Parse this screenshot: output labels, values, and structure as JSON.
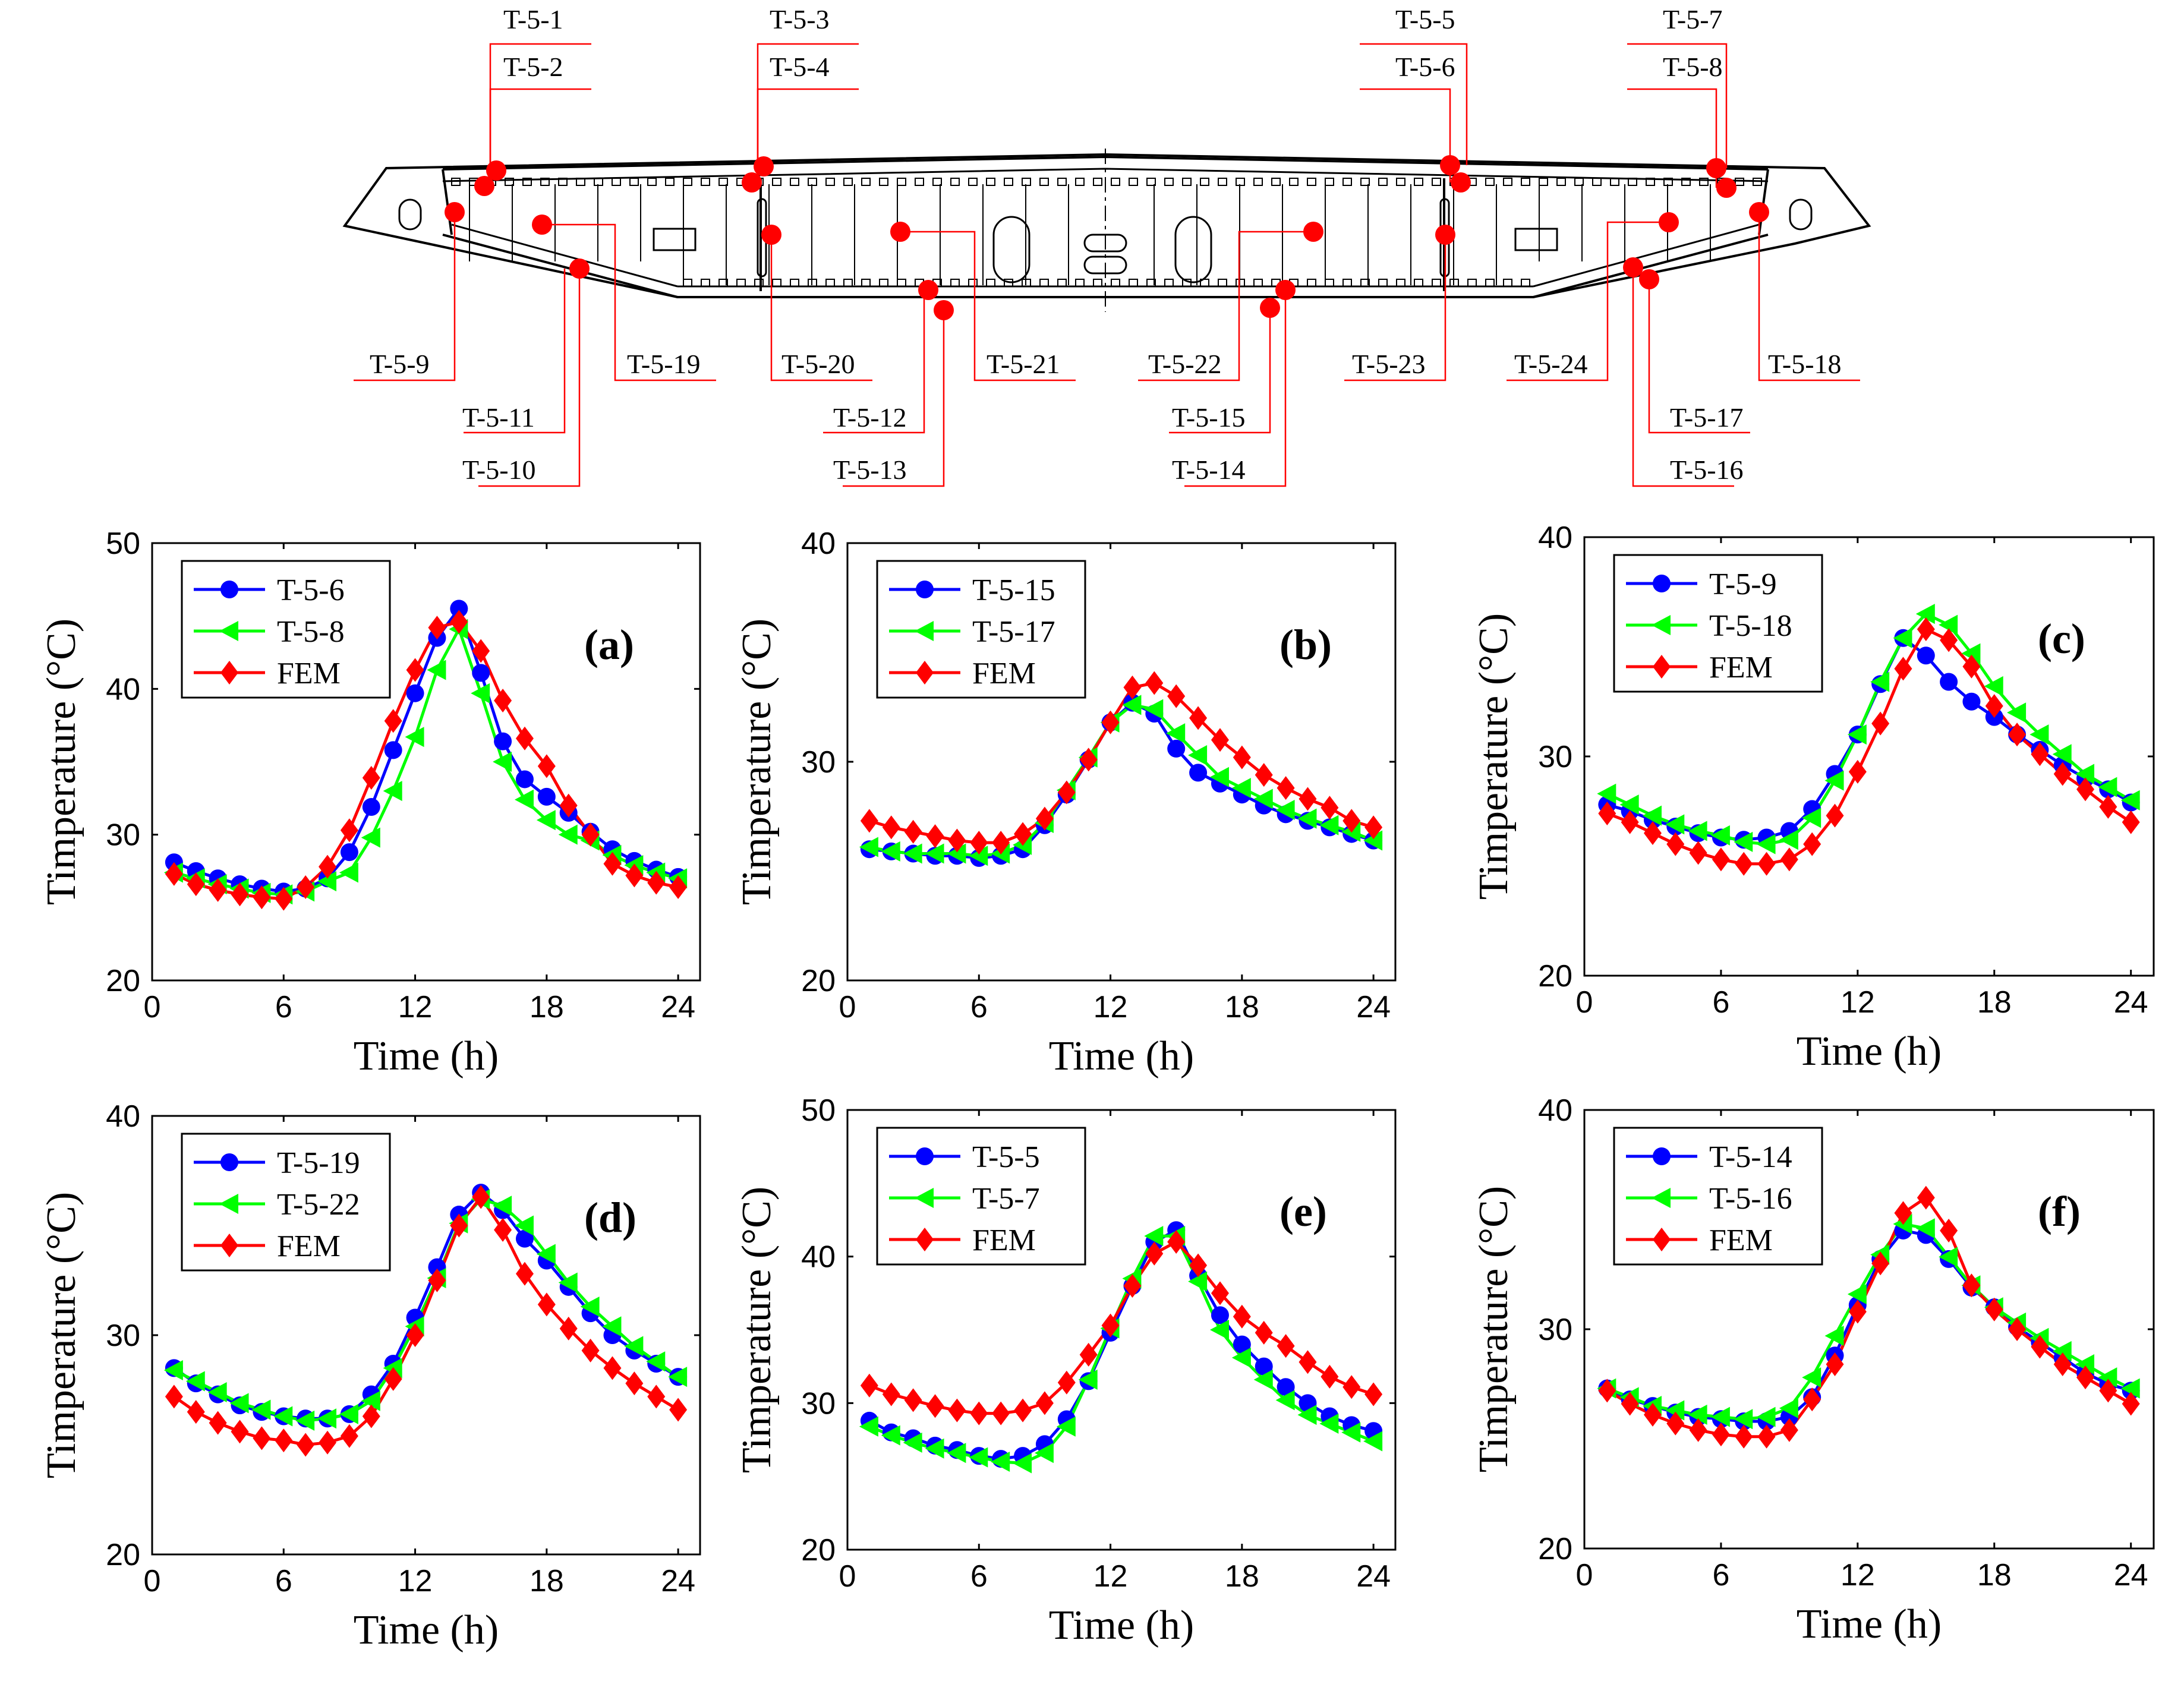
{
  "colors": {
    "series1": "#0000ff",
    "series2": "#00ff00",
    "fem": "#ff0000",
    "sensor": "#ff0000",
    "leader": "#ff0000"
  },
  "diagram": {
    "title": "",
    "sensor_labels": [
      "T-5-1",
      "T-5-2",
      "T-5-3",
      "T-5-4",
      "T-5-5",
      "T-5-6",
      "T-5-7",
      "T-5-8",
      "T-5-9",
      "T-5-10",
      "T-5-11",
      "T-5-12",
      "T-5-13",
      "T-5-14",
      "T-5-15",
      "T-5-16",
      "T-5-17",
      "T-5-18",
      "T-5-19",
      "T-5-20",
      "T-5-21",
      "T-5-22",
      "T-5-23",
      "T-5-24"
    ]
  },
  "chart_data": [
    {
      "type": "line",
      "panel": "(a)",
      "xlabel": "Time (h)",
      "ylabel": "Timperature (°C)",
      "xlim": [
        0,
        25
      ],
      "ylim": [
        20,
        50
      ],
      "xticks": [
        0,
        6,
        12,
        18,
        24
      ],
      "yticks": [
        20,
        30,
        40,
        50
      ],
      "x": [
        1,
        2,
        3,
        4,
        5,
        6,
        7,
        8,
        9,
        10,
        11,
        12,
        13,
        14,
        15,
        16,
        17,
        18,
        19,
        20,
        21,
        22,
        23,
        24
      ],
      "series": [
        {
          "name": "T-5-6",
          "marker": "circle",
          "values": [
            28.1,
            27.5,
            27.0,
            26.6,
            26.3,
            26.1,
            26.3,
            27.0,
            28.8,
            31.9,
            35.8,
            39.7,
            43.5,
            45.5,
            41.1,
            36.4,
            33.8,
            32.6,
            31.5,
            30.2,
            29.0,
            28.2,
            27.6,
            27.1
          ]
        },
        {
          "name": "T-5-8",
          "marker": "triangle-left",
          "values": [
            27.4,
            27.0,
            26.6,
            26.3,
            26.0,
            25.9,
            26.1,
            26.8,
            27.4,
            29.8,
            33.0,
            36.7,
            41.3,
            44.1,
            39.7,
            35.0,
            32.4,
            31.0,
            30.0,
            29.6,
            28.6,
            27.9,
            27.4,
            27.0
          ]
        },
        {
          "name": "FEM",
          "marker": "diamond",
          "values": [
            27.3,
            26.6,
            26.2,
            25.9,
            25.7,
            25.6,
            26.4,
            27.8,
            30.3,
            33.9,
            37.8,
            41.3,
            44.2,
            44.6,
            42.6,
            39.2,
            36.6,
            34.7,
            32.0,
            30.0,
            28.0,
            27.2,
            26.7,
            26.4
          ]
        }
      ]
    },
    {
      "type": "line",
      "panel": "(b)",
      "xlabel": "Time (h)",
      "ylabel": "Timperature (°C)",
      "xlim": [
        0,
        25
      ],
      "ylim": [
        20,
        40
      ],
      "xticks": [
        0,
        6,
        12,
        18,
        24
      ],
      "yticks": [
        20,
        30,
        40
      ],
      "x": [
        1,
        2,
        3,
        4,
        5,
        6,
        7,
        8,
        9,
        10,
        11,
        12,
        13,
        14,
        15,
        16,
        17,
        18,
        19,
        20,
        21,
        22,
        23,
        24
      ],
      "series": [
        {
          "name": "T-5-15",
          "marker": "circle",
          "values": [
            26.0,
            25.9,
            25.8,
            25.7,
            25.7,
            25.6,
            25.7,
            26.0,
            27.1,
            28.5,
            30.1,
            31.8,
            32.7,
            32.2,
            30.6,
            29.5,
            29.0,
            28.5,
            28.0,
            27.6,
            27.3,
            27.0,
            26.7,
            26.4
          ]
        },
        {
          "name": "T-5-17",
          "marker": "triangle-left",
          "values": [
            26.1,
            25.9,
            25.8,
            25.8,
            25.8,
            25.7,
            25.8,
            26.2,
            27.2,
            28.7,
            30.2,
            31.8,
            32.6,
            32.4,
            31.3,
            30.3,
            29.3,
            28.8,
            28.3,
            27.8,
            27.4,
            27.1,
            26.8,
            26.4
          ]
        },
        {
          "name": "FEM",
          "marker": "diamond",
          "values": [
            27.3,
            27.0,
            26.8,
            26.6,
            26.4,
            26.3,
            26.3,
            26.7,
            27.4,
            28.6,
            30.1,
            31.8,
            33.4,
            33.6,
            33.0,
            32.0,
            31.0,
            30.2,
            29.4,
            28.8,
            28.3,
            27.9,
            27.3,
            27.0
          ]
        }
      ]
    },
    {
      "type": "line",
      "panel": "(c)",
      "xlabel": "Time (h)",
      "ylabel": "Timperature (°C)",
      "xlim": [
        0,
        25
      ],
      "ylim": [
        20,
        40
      ],
      "xticks": [
        0,
        6,
        12,
        18,
        24
      ],
      "yticks": [
        20,
        30,
        40
      ],
      "x": [
        1,
        2,
        3,
        4,
        5,
        6,
        7,
        8,
        9,
        10,
        11,
        12,
        13,
        14,
        15,
        16,
        17,
        18,
        19,
        20,
        21,
        22,
        23,
        24
      ],
      "series": [
        {
          "name": "T-5-9",
          "marker": "circle",
          "values": [
            27.8,
            27.5,
            27.1,
            26.8,
            26.5,
            26.3,
            26.2,
            26.3,
            26.6,
            27.6,
            29.2,
            31.0,
            33.3,
            35.4,
            34.6,
            33.4,
            32.5,
            31.8,
            31.0,
            30.3,
            29.6,
            29.0,
            28.5,
            27.9
          ]
        },
        {
          "name": "T-5-18",
          "marker": "triangle-left",
          "values": [
            28.3,
            27.8,
            27.3,
            26.9,
            26.6,
            26.4,
            26.1,
            26.0,
            26.2,
            27.2,
            28.9,
            31.0,
            33.4,
            35.4,
            36.5,
            36.0,
            34.7,
            33.2,
            32.0,
            31.0,
            30.1,
            29.2,
            28.6,
            28.0
          ]
        },
        {
          "name": "FEM",
          "marker": "diamond",
          "values": [
            27.4,
            27.0,
            26.5,
            26.0,
            25.6,
            25.3,
            25.1,
            25.1,
            25.3,
            26.0,
            27.3,
            29.3,
            31.5,
            34.0,
            35.8,
            35.3,
            34.1,
            32.3,
            31.0,
            30.1,
            29.2,
            28.5,
            27.7,
            27.0
          ]
        }
      ]
    },
    {
      "type": "line",
      "panel": "(d)",
      "xlabel": "Time (h)",
      "ylabel": "Timperature (°C)",
      "xlim": [
        0,
        25
      ],
      "ylim": [
        20,
        40
      ],
      "xticks": [
        0,
        6,
        12,
        18,
        24
      ],
      "yticks": [
        20,
        30,
        40
      ],
      "x": [
        1,
        2,
        3,
        4,
        5,
        6,
        7,
        8,
        9,
        10,
        11,
        12,
        13,
        14,
        15,
        16,
        17,
        18,
        19,
        20,
        21,
        22,
        23,
        24
      ],
      "series": [
        {
          "name": "T-5-19",
          "marker": "circle",
          "values": [
            28.5,
            27.8,
            27.3,
            26.8,
            26.5,
            26.3,
            26.2,
            26.2,
            26.4,
            27.3,
            28.7,
            30.8,
            33.1,
            35.5,
            36.5,
            35.7,
            34.4,
            33.4,
            32.2,
            31.0,
            30.0,
            29.3,
            28.7,
            28.1
          ]
        },
        {
          "name": "T-5-22",
          "marker": "triangle-left",
          "values": [
            28.4,
            27.9,
            27.4,
            26.9,
            26.6,
            26.3,
            26.1,
            26.2,
            26.4,
            27.0,
            28.5,
            30.4,
            32.6,
            35.1,
            36.2,
            35.9,
            35.0,
            33.7,
            32.4,
            31.3,
            30.4,
            29.5,
            28.8,
            28.1
          ]
        },
        {
          "name": "FEM",
          "marker": "diamond",
          "values": [
            27.2,
            26.5,
            26.0,
            25.6,
            25.3,
            25.2,
            25.0,
            25.1,
            25.4,
            26.3,
            28.0,
            30.0,
            32.5,
            35.0,
            36.3,
            34.8,
            32.8,
            31.4,
            30.3,
            29.3,
            28.5,
            27.8,
            27.2,
            26.6
          ]
        }
      ]
    },
    {
      "type": "line",
      "panel": "(e)",
      "xlabel": "Time (h)",
      "ylabel": "Timperature (°C)",
      "xlim": [
        0,
        25
      ],
      "ylim": [
        20,
        50
      ],
      "xticks": [
        0,
        6,
        12,
        18,
        24
      ],
      "yticks": [
        20,
        30,
        40,
        50
      ],
      "x": [
        1,
        2,
        3,
        4,
        5,
        6,
        7,
        8,
        9,
        10,
        11,
        12,
        13,
        14,
        15,
        16,
        17,
        18,
        19,
        20,
        21,
        22,
        23,
        24
      ],
      "series": [
        {
          "name": "T-5-5",
          "marker": "circle",
          "values": [
            28.8,
            28.0,
            27.6,
            27.1,
            26.8,
            26.4,
            26.2,
            26.4,
            27.2,
            28.9,
            31.5,
            34.8,
            38.0,
            41.0,
            41.8,
            38.7,
            36.0,
            34.0,
            32.5,
            31.1,
            30.0,
            29.1,
            28.5,
            28.1
          ]
        },
        {
          "name": "T-5-7",
          "marker": "triangle-left",
          "values": [
            28.4,
            27.8,
            27.3,
            26.9,
            26.6,
            26.3,
            26.0,
            25.9,
            26.6,
            28.4,
            31.6,
            35.1,
            38.5,
            41.4,
            41.4,
            38.3,
            35.0,
            33.1,
            31.6,
            30.2,
            29.2,
            28.6,
            28.0,
            27.4
          ]
        },
        {
          "name": "FEM",
          "marker": "diamond",
          "values": [
            31.2,
            30.6,
            30.2,
            29.8,
            29.5,
            29.3,
            29.3,
            29.5,
            30.0,
            31.4,
            33.3,
            35.3,
            38.0,
            40.2,
            41.0,
            39.4,
            37.5,
            35.9,
            34.8,
            33.9,
            32.8,
            31.8,
            31.1,
            30.6
          ]
        }
      ]
    },
    {
      "type": "line",
      "panel": "(f)",
      "xlabel": "Time (h)",
      "ylabel": "Timperature (°C)",
      "xlim": [
        0,
        25
      ],
      "ylim": [
        20,
        40
      ],
      "xticks": [
        0,
        6,
        12,
        18,
        24
      ],
      "yticks": [
        20,
        30,
        40
      ],
      "x": [
        1,
        2,
        3,
        4,
        5,
        6,
        7,
        8,
        9,
        10,
        11,
        12,
        13,
        14,
        15,
        16,
        17,
        18,
        19,
        20,
        21,
        22,
        23,
        24
      ],
      "series": [
        {
          "name": "T-5-14",
          "marker": "circle",
          "values": [
            27.3,
            26.8,
            26.5,
            26.2,
            26.0,
            25.9,
            25.8,
            25.8,
            26.0,
            26.9,
            28.8,
            31.1,
            33.2,
            34.5,
            34.3,
            33.2,
            31.9,
            31.0,
            30.1,
            29.4,
            28.7,
            28.0,
            27.5,
            27.2
          ]
        },
        {
          "name": "T-5-16",
          "marker": "triangle-left",
          "values": [
            27.3,
            26.9,
            26.5,
            26.3,
            26.1,
            26.0,
            25.9,
            26.0,
            26.4,
            27.8,
            29.7,
            31.6,
            33.4,
            34.8,
            34.6,
            33.3,
            32.0,
            31.0,
            30.3,
            29.6,
            29.0,
            28.4,
            27.8,
            27.3
          ]
        },
        {
          "name": "FEM",
          "marker": "diamond",
          "values": [
            27.2,
            26.6,
            26.1,
            25.7,
            25.4,
            25.2,
            25.1,
            25.1,
            25.4,
            26.8,
            28.4,
            30.8,
            33.0,
            35.3,
            36.0,
            34.5,
            32.0,
            30.9,
            30.0,
            29.2,
            28.4,
            27.8,
            27.2,
            26.6
          ]
        }
      ]
    }
  ]
}
